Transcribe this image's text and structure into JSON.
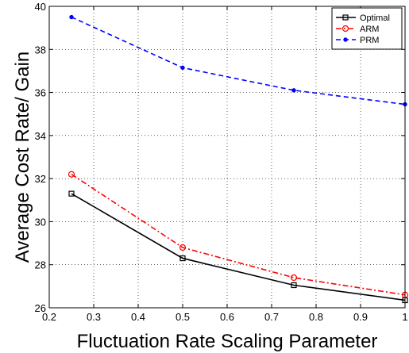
{
  "chart_data": {
    "type": "line",
    "title": "",
    "xlabel": "Fluctuation Rate Scaling Parameter",
    "ylabel": "Average Cost Rate/ Gain",
    "xlim": [
      0.2,
      1
    ],
    "ylim": [
      26,
      40
    ],
    "x_ticks": [
      "0.2",
      "0.3",
      "0.4",
      "0.5",
      "0.6",
      "0.7",
      "0.8",
      "0.9",
      "1"
    ],
    "y_ticks": [
      "26",
      "28",
      "30",
      "32",
      "34",
      "36",
      "38",
      "40"
    ],
    "grid": true,
    "legend_position": "top-right",
    "x": [
      0.25,
      0.5,
      0.75,
      1.0
    ],
    "series": [
      {
        "name": "Optimal",
        "values": [
          31.3,
          28.3,
          27.05,
          26.35
        ],
        "color": "#000000",
        "line_style": "solid",
        "marker": "square"
      },
      {
        "name": "ARM",
        "values": [
          32.2,
          28.8,
          27.4,
          26.6
        ],
        "color": "#ff0000",
        "line_style": "dashdot",
        "marker": "circle"
      },
      {
        "name": "PRM",
        "values": [
          39.5,
          37.15,
          36.1,
          35.45
        ],
        "color": "#0000ff",
        "line_style": "dashed",
        "marker": "dot"
      }
    ]
  }
}
